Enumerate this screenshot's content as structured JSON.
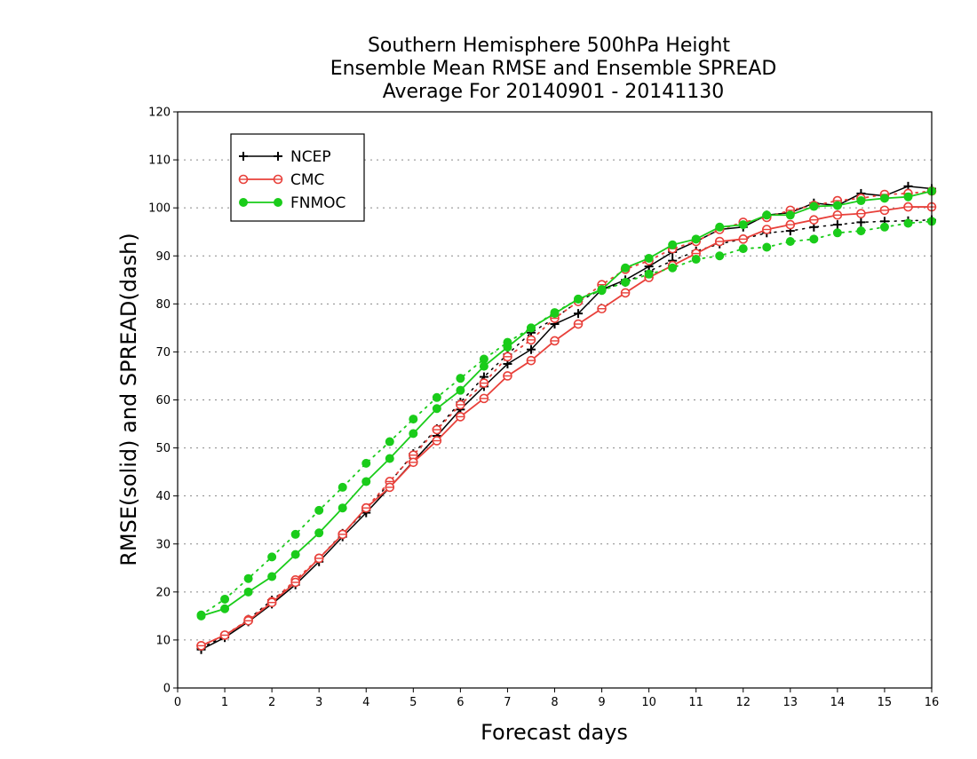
{
  "chart_data": {
    "type": "line",
    "title_lines": [
      "Southern Hemisphere 500hPa Height",
      "Ensemble Mean RMSE and Ensemble SPREAD",
      "Average For 20140901 - 20141130"
    ],
    "xlabel": "Forecast days",
    "ylabel": "RMSE(solid) and SPREAD(dash)",
    "xlim": [
      0,
      16
    ],
    "ylim": [
      0,
      120
    ],
    "x_ticks": [
      0,
      1,
      2,
      3,
      4,
      5,
      6,
      7,
      8,
      9,
      10,
      11,
      12,
      13,
      14,
      15,
      16
    ],
    "y_ticks": [
      0,
      10,
      20,
      30,
      40,
      50,
      60,
      70,
      80,
      90,
      100,
      110,
      120
    ],
    "grid": {
      "horizontal": true,
      "vertical": false
    },
    "legend_position": "top-left",
    "x": [
      0.5,
      1,
      1.5,
      2,
      2.5,
      3,
      3.5,
      4,
      4.5,
      5,
      5.5,
      6,
      6.5,
      7,
      7.5,
      8,
      8.5,
      9,
      9.5,
      10,
      10.5,
      11,
      11.5,
      12,
      12.5,
      13,
      13.5,
      14,
      14.5,
      15,
      15.5,
      16
    ],
    "series": [
      {
        "name": "NCEP",
        "color": "#000000",
        "marker": "plus",
        "rmse": [
          8.0,
          10.5,
          13.8,
          17.5,
          21.5,
          26.3,
          31.5,
          36.5,
          41.8,
          47.2,
          52.5,
          58.0,
          62.8,
          67.5,
          70.5,
          75.8,
          78.0,
          83.0,
          85.0,
          87.8,
          90.8,
          93.0,
          95.5,
          96.0,
          98.5,
          99.0,
          101.0,
          100.5,
          103.0,
          102.5,
          104.5,
          104.0
        ],
        "spread": [
          8.3,
          10.8,
          14.3,
          18.3,
          22.0,
          27.0,
          32.2,
          37.0,
          42.8,
          48.8,
          54.0,
          59.5,
          64.8,
          69.5,
          74.0,
          77.0,
          80.5,
          83.0,
          84.5,
          86.8,
          89.0,
          91.0,
          92.5,
          93.5,
          94.8,
          95.2,
          96.0,
          96.5,
          97.0,
          97.2,
          97.3,
          97.5
        ]
      },
      {
        "name": "CMC",
        "color": "#e8403a",
        "marker": "open-circle",
        "rmse": [
          8.8,
          11.0,
          14.0,
          17.8,
          22.0,
          27.0,
          32.0,
          37.5,
          41.8,
          47.0,
          51.5,
          56.5,
          60.3,
          65.0,
          68.2,
          72.3,
          75.8,
          79.0,
          82.3,
          85.5,
          88.0,
          90.5,
          93.0,
          93.5,
          95.5,
          96.5,
          97.5,
          98.5,
          98.8,
          99.5,
          100.2,
          100.2
        ],
        "spread": [
          8.8,
          11.0,
          14.2,
          18.0,
          22.5,
          27.0,
          32.0,
          37.5,
          43.0,
          48.5,
          53.8,
          59.0,
          63.5,
          69.0,
          72.5,
          77.0,
          80.5,
          84.0,
          87.2,
          89.0,
          91.5,
          93.0,
          95.5,
          97.0,
          98.0,
          99.5,
          100.5,
          101.5,
          102.0,
          102.8,
          103.0,
          103.5
        ]
      },
      {
        "name": "FNMOC",
        "color": "#1acc1a",
        "marker": "filled-circle",
        "rmse": [
          15.0,
          16.5,
          20.0,
          23.2,
          27.8,
          32.3,
          37.5,
          43.0,
          47.8,
          53.0,
          58.2,
          62.0,
          67.0,
          71.0,
          75.0,
          78.0,
          81.0,
          83.0,
          87.5,
          89.5,
          92.3,
          93.5,
          96.0,
          96.5,
          98.5,
          98.5,
          100.3,
          100.5,
          101.5,
          102.0,
          102.3,
          103.5
        ],
        "spread": [
          15.2,
          18.5,
          22.8,
          27.3,
          32.0,
          37.0,
          41.8,
          46.8,
          51.3,
          56.0,
          60.5,
          64.5,
          68.5,
          72.0,
          75.0,
          78.2,
          81.0,
          82.8,
          84.5,
          86.2,
          87.5,
          89.3,
          90.0,
          91.5,
          91.8,
          93.0,
          93.5,
          94.8,
          95.2,
          96.0,
          96.8,
          97.2
        ]
      }
    ]
  }
}
